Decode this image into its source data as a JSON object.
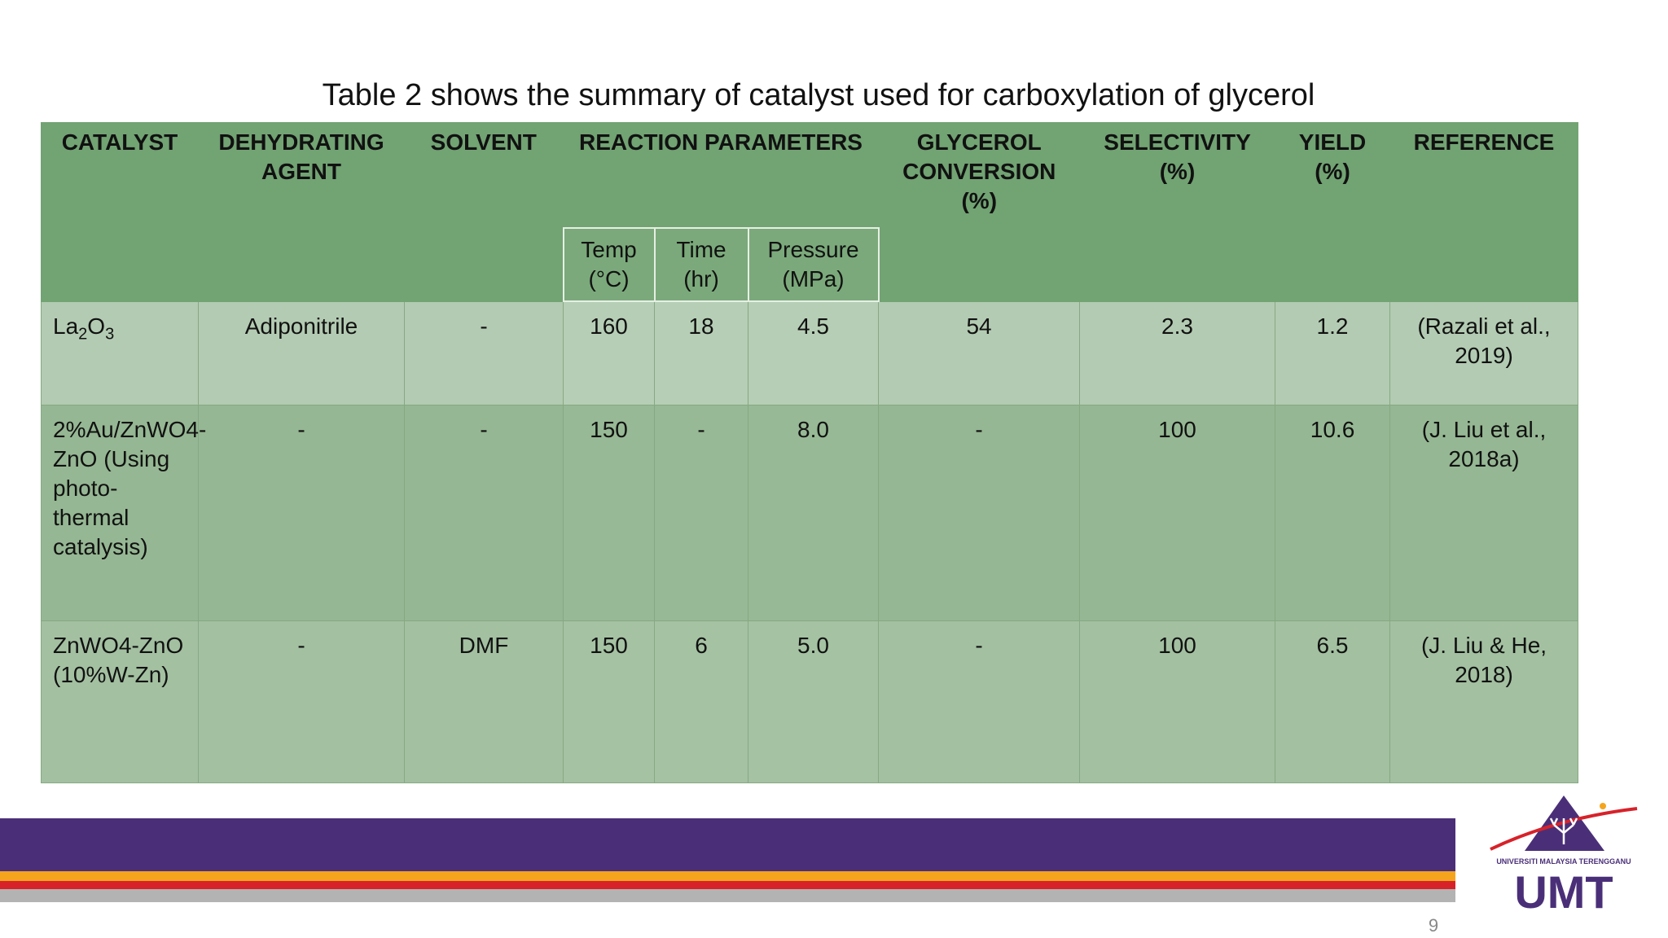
{
  "slide": {
    "title": "Table 2 shows the summary of catalyst used for carboxylation of glycerol",
    "page_number": "9"
  },
  "table": {
    "headers": {
      "catalyst": "CATALYST",
      "dehydrating_agent": "DEHYDRATING AGENT",
      "solvent": "SOLVENT",
      "reaction_parameters": "REACTION PARAMETERS",
      "glycerol_conversion": "GLYCEROL CONVERSION (%)",
      "selectivity": "SELECTIVITY (%)",
      "yield": "YIELD (%)",
      "reference": "REFERENCE"
    },
    "subheaders": {
      "temp_label": "Temp",
      "temp_unit": "(°C)",
      "time_label": "Time",
      "time_unit": "(hr)",
      "pressure_label": "Pressure",
      "pressure_unit": "(MPa)"
    },
    "rows": [
      {
        "catalyst_base": "La",
        "catalyst_sub1": "2",
        "catalyst_mid": "O",
        "catalyst_sub2": "3",
        "dehydrating_agent": "Adiponitrile",
        "solvent": "-",
        "temp": "160",
        "time": "18",
        "pressure": "4.5",
        "conversion": "54",
        "selectivity": "2.3",
        "yield": "1.2",
        "reference": "(Razali et al., 2019)"
      },
      {
        "catalyst": "2%Au/ZnWO4-ZnO (Using photo-thermal catalysis)",
        "dehydrating_agent": "-",
        "solvent": "-",
        "temp": "150",
        "time": "-",
        "pressure": "8.0",
        "conversion": "-",
        "selectivity": "100",
        "yield": "10.6",
        "reference": "(J. Liu et al., 2018a)"
      },
      {
        "catalyst": "ZnWO4-ZnO (10%W-Zn)",
        "dehydrating_agent": "-",
        "solvent": "DMF",
        "temp": "150",
        "time": "6",
        "pressure": "5.0",
        "conversion": "-",
        "selectivity": "100",
        "yield": "6.5",
        "reference": "(J. Liu & He, 2018)"
      }
    ]
  },
  "logo": {
    "line1": "UNIVERSITI MALAYSIA TERENGGANU",
    "wordmark": "UMT"
  },
  "colors": {
    "header_green": "#72a373",
    "band_purple": "#4a2f78",
    "band_orange": "#f5a51d",
    "band_red": "#d7222a"
  }
}
